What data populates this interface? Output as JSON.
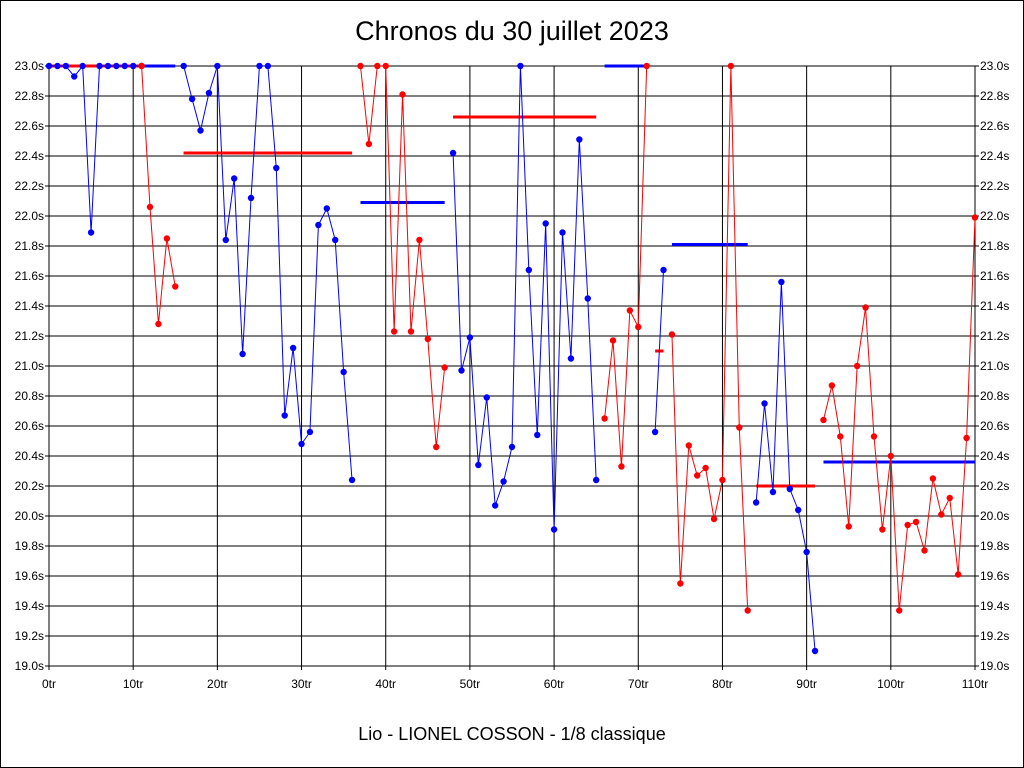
{
  "chart_data": {
    "type": "line",
    "title": "Chronos du 30 juillet 2023",
    "xlabel": "Lio - LIONEL COSSON - 1/8 classique",
    "ylabel": "",
    "xlim": [
      0,
      110
    ],
    "ylim": [
      19.0,
      23.0
    ],
    "grid": true,
    "x_ticks": [
      "0tr",
      "10tr",
      "20tr",
      "30tr",
      "40tr",
      "50tr",
      "60tr",
      "70tr",
      "80tr",
      "90tr",
      "100tr",
      "110tr"
    ],
    "x_tick_values": [
      0,
      10,
      20,
      30,
      40,
      50,
      60,
      70,
      80,
      90,
      100,
      110
    ],
    "y_ticks": [
      "19.0s",
      "19.2s",
      "19.4s",
      "19.6s",
      "19.8s",
      "20.0s",
      "20.2s",
      "20.4s",
      "20.6s",
      "20.8s",
      "21.0s",
      "21.2s",
      "21.4s",
      "21.6s",
      "21.8s",
      "22.0s",
      "22.2s",
      "22.4s",
      "22.6s",
      "22.8s",
      "23.0s"
    ],
    "y_tick_values": [
      19.0,
      19.2,
      19.4,
      19.6,
      19.8,
      20.0,
      20.2,
      20.4,
      20.6,
      20.8,
      21.0,
      21.2,
      21.4,
      21.6,
      21.8,
      22.0,
      22.2,
      22.4,
      22.6,
      22.8,
      23.0
    ],
    "colors": {
      "blue": "#0000ff",
      "red": "#ff0000",
      "grid": "#000000"
    },
    "stints": [
      {
        "name": "stint-1",
        "color": "blue",
        "x": [
          0,
          1,
          2,
          3,
          4,
          5,
          6,
          7,
          8,
          9,
          10,
          11
        ],
        "y": [
          23.0,
          23.0,
          23.0,
          22.93,
          23.0,
          21.89,
          23.0,
          23.0,
          23.0,
          23.0,
          23.0,
          23.0
        ],
        "average": 23.0,
        "avg_range": [
          0,
          15
        ]
      },
      {
        "name": "stint-2",
        "color": "red",
        "x": [
          11,
          12,
          13,
          14,
          15
        ],
        "y": [
          23.0,
          22.06,
          21.28,
          21.85,
          21.53
        ],
        "average": 23.0,
        "avg_range": [
          0,
          11
        ]
      },
      {
        "name": "stint-3",
        "color": "blue",
        "x": [
          16,
          17,
          18,
          19,
          20,
          21,
          22,
          23,
          24,
          25,
          26,
          27,
          28,
          29,
          30,
          31,
          32,
          33,
          34,
          35,
          36
        ],
        "y": [
          23.0,
          22.78,
          22.57,
          22.82,
          23.0,
          21.84,
          22.25,
          21.08,
          22.12,
          23.0,
          23.0,
          22.32,
          20.67,
          21.12,
          20.48,
          20.56,
          21.94,
          22.05,
          21.84,
          20.96,
          20.24
        ],
        "average": 22.42,
        "avg_range": [
          16,
          36
        ]
      },
      {
        "name": "stint-4",
        "color": "red",
        "x": [
          37,
          38,
          39,
          40,
          41,
          42,
          43,
          44,
          45,
          46,
          47
        ],
        "y": [
          23.0,
          22.48,
          23.0,
          23.0,
          21.23,
          22.81,
          21.23,
          21.84,
          21.18,
          20.46,
          20.99
        ],
        "average": 22.42,
        "avg_range": [
          16,
          36
        ]
      },
      {
        "name": "stint-5",
        "color": "blue",
        "x": [
          48,
          49,
          50,
          51,
          52,
          53,
          54,
          55,
          56,
          57,
          58,
          59,
          60,
          61,
          62,
          63,
          64,
          65
        ],
        "y": [
          22.42,
          20.97,
          21.19,
          20.34,
          20.79,
          20.07,
          20.23,
          20.46,
          23.0,
          21.64,
          20.54,
          21.95,
          19.91,
          21.89,
          21.05,
          22.51,
          21.45,
          20.24
        ],
        "average": 22.09,
        "avg_range": [
          37,
          47
        ]
      },
      {
        "name": "stint-6",
        "color": "red",
        "x": [
          66,
          67,
          68,
          69,
          70,
          71
        ],
        "y": [
          20.65,
          21.17,
          20.33,
          21.37,
          21.26,
          23.0
        ],
        "average": 22.66,
        "avg_range": [
          48,
          65
        ]
      },
      {
        "name": "stint-7",
        "color": "blue",
        "x": [
          72,
          73
        ],
        "y": [
          20.56,
          21.64
        ],
        "average": 23.0,
        "avg_range": [
          66,
          71
        ]
      },
      {
        "name": "stint-8",
        "color": "red",
        "x": [
          74,
          75,
          76,
          77,
          78,
          79,
          80,
          81,
          82,
          83
        ],
        "y": [
          21.21,
          19.55,
          20.47,
          20.27,
          20.32,
          19.98,
          20.24,
          23.0,
          20.59,
          19.37
        ],
        "average": 21.1,
        "avg_range": [
          72,
          73
        ]
      },
      {
        "name": "stint-9",
        "color": "blue",
        "x": [
          84,
          85,
          86,
          87,
          88,
          89,
          90,
          91
        ],
        "y": [
          20.09,
          20.75,
          20.16,
          21.56,
          20.18,
          20.04,
          19.76,
          19.1
        ],
        "average": 21.81,
        "avg_range": [
          74,
          83
        ]
      },
      {
        "name": "stint-10",
        "color": "red",
        "x": [
          92,
          93,
          94,
          95,
          96,
          97,
          98,
          99,
          100,
          101,
          102,
          103,
          104,
          105,
          106,
          107,
          108,
          109,
          110
        ],
        "y": [
          20.64,
          20.87,
          20.53,
          19.93,
          21.0,
          21.39,
          20.53,
          19.91,
          20.4,
          19.37,
          19.94,
          19.96,
          19.77,
          20.25,
          20.01,
          20.12,
          19.61,
          20.52,
          21.99
        ],
        "average": 20.2,
        "avg_range": [
          84,
          91
        ]
      }
    ],
    "extra_averages": [
      {
        "color": "blue",
        "value": 20.36,
        "range": [
          92,
          110
        ]
      }
    ]
  }
}
